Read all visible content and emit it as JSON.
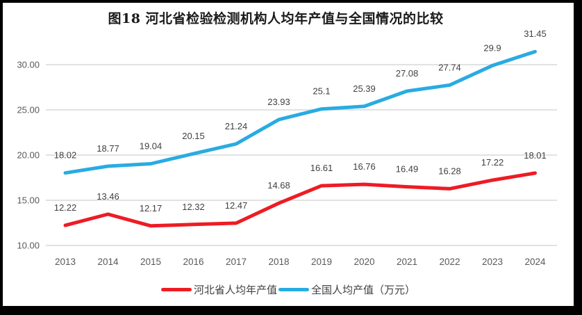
{
  "frame": {
    "border_color": "#000000",
    "background_color": "#ffffff"
  },
  "chart_data": {
    "type": "line",
    "title": "图18  河北省检验检测机构人均年产值与全国情况的比较",
    "categories": [
      "2013",
      "2014",
      "2015",
      "2016",
      "2017",
      "2018",
      "2019",
      "2020",
      "2021",
      "2022",
      "2023",
      "2024"
    ],
    "series": [
      {
        "name": "河北省人均年产值",
        "color": "#ed1c24",
        "values": [
          12.22,
          13.46,
          12.17,
          12.32,
          12.47,
          14.68,
          16.61,
          16.76,
          16.49,
          16.28,
          17.22,
          18.01
        ],
        "labels": [
          "12.22",
          "13.46",
          "12.17",
          "12.32",
          "12.47",
          "14.68",
          "16.61",
          "16.76",
          "16.49",
          "16.28",
          "17.22",
          "18.01"
        ]
      },
      {
        "name": "全国人均产值（万元）",
        "color": "#29abe2",
        "values": [
          18.02,
          18.77,
          19.04,
          20.15,
          21.24,
          23.93,
          25.1,
          25.39,
          27.08,
          27.74,
          29.9,
          31.45
        ],
        "labels": [
          "18.02",
          "18.77",
          "19.04",
          "20.15",
          "21.24",
          "23.93",
          "25.1",
          "25.39",
          "27.08",
          "27.74",
          "29.9",
          "31.45"
        ]
      }
    ],
    "xlabel": "",
    "ylabel": "",
    "y_axis": {
      "ticks": [
        "10.00",
        "15.00",
        "20.00",
        "25.00",
        "30.00"
      ],
      "min": 10,
      "max": 30,
      "step": 5
    },
    "grid": true,
    "data_labels": true,
    "legend_position": "bottom"
  },
  "colors": {
    "grid_line": "#d9d9d9",
    "axis_text": "#595959",
    "data_label_text": "#404040",
    "title_text": "#1a1a1a"
  }
}
